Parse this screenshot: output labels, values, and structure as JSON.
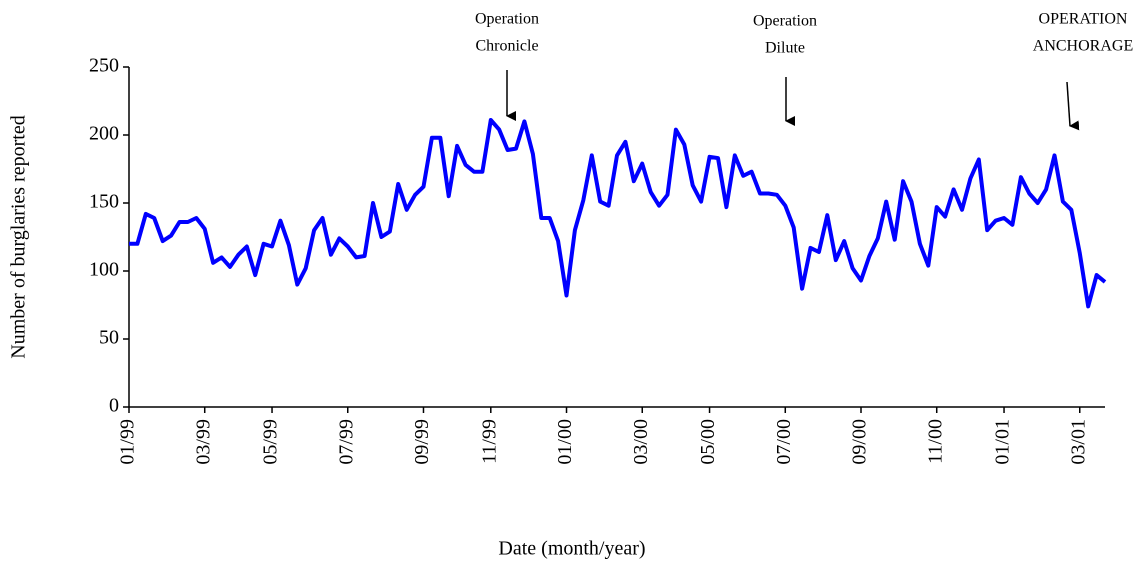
{
  "chart_data": {
    "type": "line",
    "y_label": "Number of burglaries reported",
    "x_label": "Date (month/year)",
    "annotations": [
      [
        "Operation",
        "Chronicle"
      ],
      [
        "Operation",
        "Dilute"
      ],
      [
        "OPERATION",
        "ANCHORAGE"
      ]
    ],
    "categories": [
      "01/99",
      null,
      null,
      null,
      null,
      null,
      null,
      null,
      null,
      "03/99",
      null,
      null,
      null,
      null,
      null,
      null,
      null,
      "05/99",
      null,
      null,
      null,
      null,
      null,
      null,
      null,
      null,
      "07/99",
      null,
      null,
      null,
      null,
      null,
      null,
      null,
      null,
      "09/99",
      null,
      null,
      null,
      null,
      null,
      null,
      null,
      "11/99",
      null,
      null,
      null,
      null,
      null,
      null,
      null,
      null,
      "01/00",
      null,
      null,
      null,
      null,
      null,
      null,
      null,
      null,
      "03/00",
      null,
      null,
      null,
      null,
      null,
      null,
      null,
      "05/00",
      null,
      null,
      null,
      null,
      null,
      null,
      null,
      null,
      "07/00",
      null,
      null,
      null,
      null,
      null,
      null,
      null,
      null,
      "09/00",
      null,
      null,
      null,
      null,
      null,
      null,
      null,
      null,
      "11/00",
      null,
      null,
      null,
      null,
      null,
      null,
      null,
      "01/01",
      null,
      null,
      null,
      null,
      null,
      null,
      null,
      null,
      "03/01",
      null,
      null,
      null
    ],
    "values": [
      120,
      120,
      142,
      139,
      122,
      126,
      136,
      136,
      139,
      131,
      106,
      110,
      103,
      112,
      118,
      97,
      120,
      118,
      137,
      119,
      90,
      102,
      130,
      139,
      112,
      124,
      118,
      110,
      111,
      150,
      125,
      129,
      164,
      145,
      156,
      162,
      198,
      198,
      155,
      192,
      178,
      173,
      173,
      211,
      204,
      189,
      190,
      210,
      186,
      139,
      139,
      122,
      82,
      130,
      152,
      185,
      151,
      148,
      185,
      195,
      166,
      179,
      158,
      148,
      156,
      204,
      193,
      163,
      151,
      184,
      183,
      147,
      185,
      170,
      173,
      157,
      157,
      156,
      148,
      132,
      87,
      117,
      114,
      141,
      108,
      122,
      102,
      93,
      111,
      124,
      151,
      123,
      166,
      151,
      120,
      104,
      147,
      140,
      160,
      145,
      168,
      182,
      130,
      137,
      139,
      134,
      169,
      157,
      150,
      160,
      185,
      151,
      145,
      113,
      74,
      97,
      92
    ],
    "color": "#0000ff",
    "ylim": [
      0,
      250
    ],
    "yticks": [
      0,
      50,
      100,
      150,
      200,
      250
    ],
    "grid": false
  }
}
